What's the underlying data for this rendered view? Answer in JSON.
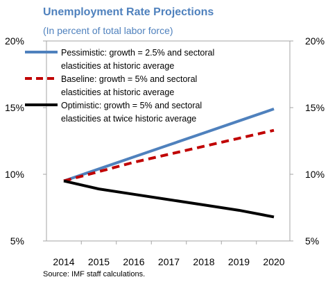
{
  "chart_data": {
    "type": "line",
    "title": "Unemployment Rate Projections",
    "subtitle": "(In percent of total labor force)",
    "x": [
      "2014",
      "2015",
      "2016",
      "2017",
      "2018",
      "2019",
      "2020"
    ],
    "ylim": [
      5,
      20
    ],
    "yticks": [
      "5%",
      "10%",
      "15%",
      "20%"
    ],
    "secondary_yticks": [
      "5%",
      "10%",
      "15%",
      "20%"
    ],
    "grid": false,
    "legend_position": "top-left",
    "series": [
      {
        "name": "Pessimistic: growth = 2.5% and sectoral elasticities at historic average",
        "legend_lines": [
          "Pessimistic: growth = 2.5% and sectoral",
          "elasticities at historic average"
        ],
        "color": "#4f81bd",
        "style": "solid",
        "values": [
          9.5,
          10.4,
          11.3,
          12.2,
          13.1,
          14.0,
          14.9
        ]
      },
      {
        "name": "Baseline: growth = 5% and sectoral elasticities at historic average",
        "legend_lines": [
          "Baseline: growth = 5% and sectoral",
          "elasticities at historic average"
        ],
        "color": "#c00000",
        "style": "dashed",
        "values": [
          9.5,
          10.2,
          10.9,
          11.5,
          12.1,
          12.7,
          13.3
        ]
      },
      {
        "name": "Optimistic: growth = 5% and sectoral elasticities at twice historic average",
        "legend_lines": [
          "Optimistic: growth = 5% and sectoral",
          "elasticities at twice historic average"
        ],
        "color": "#000000",
        "style": "solid",
        "values": [
          9.5,
          8.9,
          8.5,
          8.1,
          7.7,
          7.3,
          6.8
        ]
      }
    ],
    "source": "Source: IMF staff calculations."
  }
}
